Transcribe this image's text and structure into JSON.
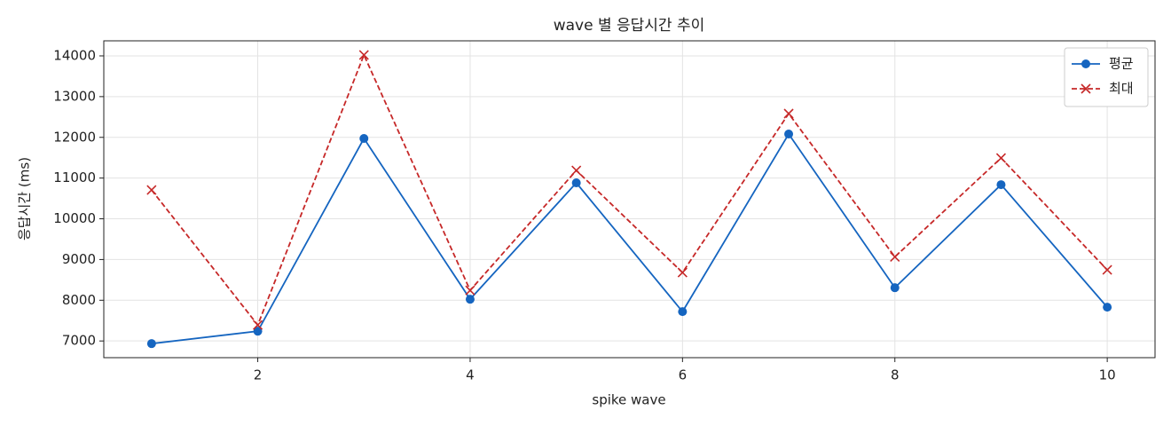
{
  "chart_data": {
    "type": "line",
    "title": "wave 별 응답시간 추이",
    "xlabel": "spike wave",
    "ylabel": "응답시간 (ms)",
    "x": [
      1,
      2,
      3,
      4,
      5,
      6,
      7,
      8,
      9,
      10
    ],
    "series": [
      {
        "name": "평균",
        "color": "#1565c0",
        "marker": "o",
        "linestyle": "-",
        "values": [
          6935,
          7240,
          11972,
          8025,
          10882,
          7720,
          12081,
          8308,
          10838,
          7829
        ]
      },
      {
        "name": "최대",
        "color": "#c62828",
        "marker": "x",
        "linestyle": "--",
        "values": [
          10707,
          7392,
          14022,
          8243,
          11188,
          8680,
          12583,
          9064,
          11493,
          8745
        ]
      }
    ],
    "xlim": [
      0.55,
      10.45
    ],
    "xticks": [
      2,
      4,
      6,
      8,
      10
    ],
    "ylim": [
      6590,
      14370
    ],
    "yticks": [
      7000,
      8000,
      9000,
      10000,
      11000,
      12000,
      13000,
      14000
    ],
    "grid": true,
    "legend": "upper right"
  }
}
